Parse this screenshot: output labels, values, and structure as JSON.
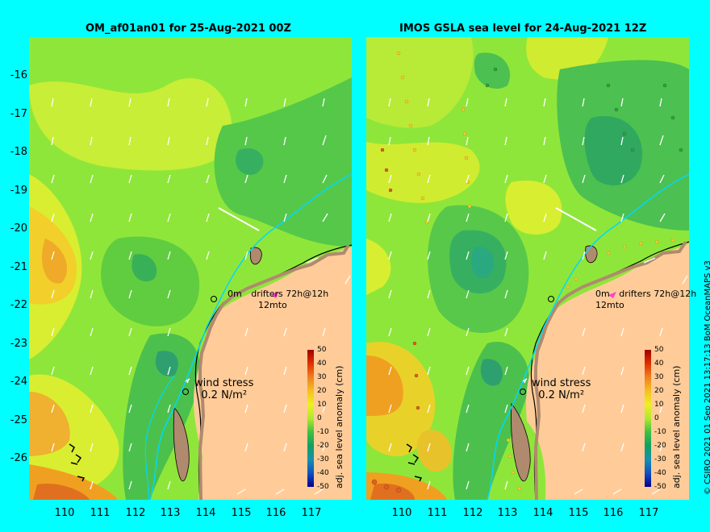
{
  "left_panel": {
    "title": "OM_af01an01 for 25-Aug-2021 00Z",
    "drifters_line1": "0m",
    "drifters_line2": "12m",
    "drifters_text": "drifters 72h@12h",
    "drifters_to": "to",
    "wind_label": "wind stress",
    "wind_value": "0.2 N/m²"
  },
  "right_panel": {
    "title": "IMOS GSLA sea level  for 24-Aug-2021 12Z",
    "drifters_line1": "0m",
    "drifters_line2": "12m",
    "drifters_text": "drifters 72h@12h",
    "drifters_to": "to",
    "wind_label": "wind stress",
    "wind_value": "0.2 N/m²"
  },
  "y_ticks": [
    "-16",
    "-17",
    "-18",
    "-19",
    "-20",
    "-21",
    "-22",
    "-23",
    "-24",
    "-25",
    "-26"
  ],
  "x_ticks": [
    "110",
    "111",
    "112",
    "113",
    "114",
    "115",
    "116",
    "117"
  ],
  "colorbar": {
    "title": "adj. sea level anomaly (cm)",
    "ticks": [
      "50",
      "40",
      "30",
      "20",
      "10",
      "0",
      "-10",
      "-20",
      "-30",
      "-40",
      "-50"
    ]
  },
  "credit": "© CSIRO 2021   01 Sep 2021 13:17:13 BoM OceanMAPS v3",
  "colors": {
    "background": "#00ffff",
    "land": "#ffcc99",
    "coast": "#b08a6e",
    "high_anomaly": "#f0a020",
    "low_anomaly": "#22a050"
  }
}
